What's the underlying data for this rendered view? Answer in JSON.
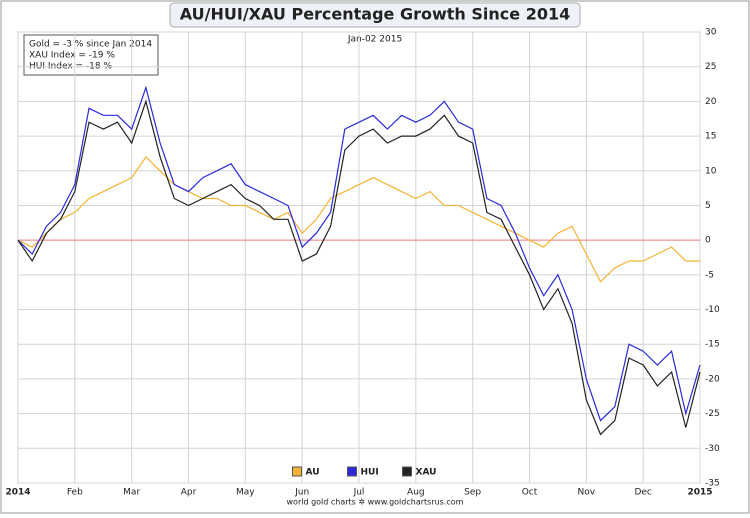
{
  "chart_data": {
    "type": "line",
    "title": "AU/HUI/XAU Percentage Growth Since 2014",
    "subtitle": "Jan-02 2015",
    "annotations": [
      "Gold = -3 % since Jan 2014",
      "XAU Index = -19 %",
      "HUI Index = -18 %"
    ],
    "source": "world gold charts ✲ www.goldchartsrus.com",
    "x": [
      0,
      0.25,
      0.5,
      0.75,
      1,
      1.25,
      1.5,
      1.75,
      2,
      2.25,
      2.5,
      2.75,
      3,
      3.25,
      3.5,
      3.75,
      4,
      4.25,
      4.5,
      4.75,
      5,
      5.25,
      5.5,
      5.75,
      6,
      6.25,
      6.5,
      6.75,
      7,
      7.25,
      7.5,
      7.75,
      8,
      8.25,
      8.5,
      8.75,
      9,
      9.25,
      9.5,
      9.75,
      10,
      10.25,
      10.5,
      10.75,
      11,
      11.25,
      11.5,
      11.75,
      12
    ],
    "xlim": [
      0,
      12
    ],
    "xticks": [
      {
        "value": 0,
        "label": "2014"
      },
      {
        "value": 1,
        "label": "Feb"
      },
      {
        "value": 2,
        "label": "Mar"
      },
      {
        "value": 3,
        "label": "Apr"
      },
      {
        "value": 4,
        "label": "May"
      },
      {
        "value": 5,
        "label": "Jun"
      },
      {
        "value": 6,
        "label": "Jul"
      },
      {
        "value": 7,
        "label": "Aug"
      },
      {
        "value": 8,
        "label": "Sep"
      },
      {
        "value": 9,
        "label": "Oct"
      },
      {
        "value": 10,
        "label": "Nov"
      },
      {
        "value": 11,
        "label": "Dec"
      },
      {
        "value": 12,
        "label": "2015"
      }
    ],
    "ylim": [
      -35,
      30
    ],
    "yticks": [
      -35,
      -30,
      -25,
      -20,
      -15,
      -10,
      -5,
      0,
      5,
      10,
      15,
      20,
      25,
      30
    ],
    "grid": true,
    "reference_line": 0,
    "reference_color": "#f08080",
    "legend": "bottom",
    "series": [
      {
        "name": "AU",
        "color": "#f5b335",
        "values": [
          0,
          -1,
          1,
          3,
          4,
          6,
          7,
          8,
          9,
          12,
          10,
          8,
          7,
          6,
          6,
          5,
          5,
          4,
          3,
          4,
          1,
          3,
          6,
          7,
          8,
          9,
          8,
          7,
          6,
          7,
          5,
          5,
          4,
          3,
          2,
          1,
          0,
          -1,
          1,
          2,
          -2,
          -6,
          -4,
          -3,
          -3,
          -2,
          -1,
          -3,
          -3
        ]
      },
      {
        "name": "HUI",
        "color": "#2a2ad8",
        "values": [
          0,
          -2,
          2,
          4,
          8,
          19,
          18,
          18,
          16,
          22,
          14,
          8,
          7,
          9,
          10,
          11,
          8,
          7,
          6,
          5,
          -1,
          1,
          4,
          16,
          17,
          18,
          16,
          18,
          17,
          18,
          20,
          17,
          16,
          6,
          5,
          1,
          -4,
          -8,
          -5,
          -10,
          -20,
          -26,
          -24,
          -15,
          -16,
          -18,
          -16,
          -25,
          -18
        ]
      },
      {
        "name": "XAU",
        "color": "#222222",
        "values": [
          0,
          -3,
          1,
          3,
          7,
          17,
          16,
          17,
          14,
          20,
          12,
          6,
          5,
          6,
          7,
          8,
          6,
          5,
          3,
          3,
          -3,
          -2,
          2,
          13,
          15,
          16,
          14,
          15,
          15,
          16,
          18,
          15,
          14,
          4,
          3,
          -1,
          -5,
          -10,
          -7,
          -12,
          -23,
          -28,
          -26,
          -17,
          -18,
          -21,
          -19,
          -27,
          -19
        ]
      }
    ]
  }
}
